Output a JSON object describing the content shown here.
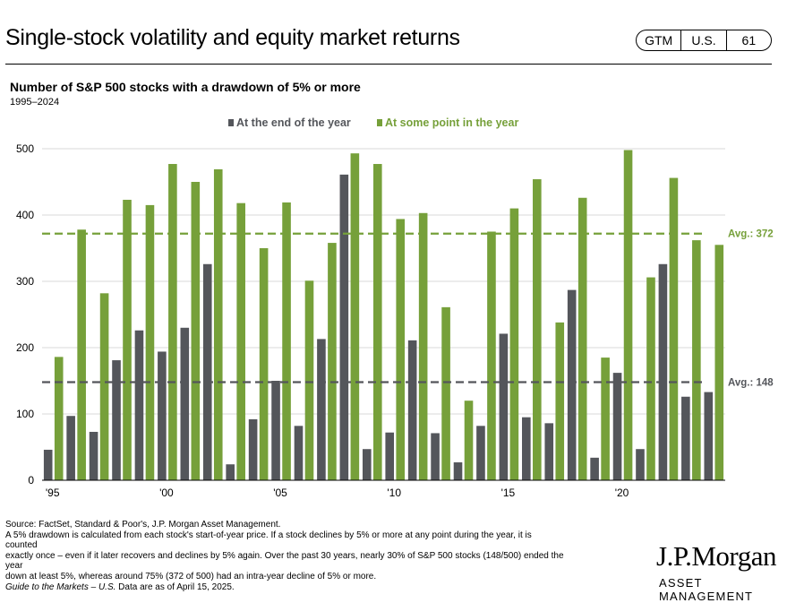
{
  "header": {
    "title": "Single-stock volatility and equity market returns",
    "badge": [
      "GTM",
      "U.S.",
      "61"
    ]
  },
  "chart_data": {
    "type": "bar",
    "title": "Number of S&P 500 stocks with a drawdown of 5% or more",
    "subtitle": "1995–2024",
    "categories": [
      1995,
      1996,
      1997,
      1998,
      1999,
      2000,
      2001,
      2002,
      2003,
      2004,
      2005,
      2006,
      2007,
      2008,
      2009,
      2010,
      2011,
      2012,
      2013,
      2014,
      2015,
      2016,
      2017,
      2018,
      2019,
      2020,
      2021,
      2022,
      2023,
      2024
    ],
    "x_tick_labels": [
      {
        "year": 1995,
        "label": "'95"
      },
      {
        "year": 2000,
        "label": "'00"
      },
      {
        "year": 2005,
        "label": "'05"
      },
      {
        "year": 2010,
        "label": "'10"
      },
      {
        "year": 2015,
        "label": "'15"
      },
      {
        "year": 2020,
        "label": "'20"
      }
    ],
    "series": [
      {
        "name": "At the end of the year",
        "color": "#54565b",
        "values": [
          46,
          97,
          73,
          181,
          226,
          194,
          230,
          326,
          24,
          92,
          150,
          82,
          213,
          461,
          47,
          72,
          211,
          71,
          27,
          82,
          221,
          95,
          86,
          287,
          34,
          162,
          47,
          326,
          126,
          133
        ]
      },
      {
        "name": "At some point in the year",
        "color": "#76a03a",
        "values": [
          186,
          378,
          282,
          423,
          415,
          477,
          450,
          469,
          418,
          350,
          419,
          301,
          358,
          493,
          477,
          394,
          403,
          261,
          120,
          375,
          410,
          454,
          238,
          426,
          185,
          498,
          306,
          456,
          362,
          355
        ]
      }
    ],
    "ylim": [
      0,
      500
    ],
    "yticks": [
      0,
      100,
      200,
      300,
      400,
      500
    ],
    "legend_position": "top-center",
    "grid": true,
    "reference_lines": [
      {
        "value": 372,
        "label": "Avg.: 372",
        "color": "#76a03a"
      },
      {
        "value": 148,
        "label": "Avg.: 148",
        "color": "#54565b"
      }
    ]
  },
  "footnote": {
    "lines": [
      "Source: FactSet, Standard & Poor's, J.P. Morgan Asset Management.",
      "A 5% drawdown is calculated from each stock's start-of-year price. If a stock declines by 5% or more at any point during the year, it is counted",
      "exactly once – even if it later recovers and declines by 5% again. Over the past 30 years, nearly 30% of S&P 500 stocks (148/500) ended the year",
      "down at least 5%, whereas around 75% (372 of 500) had an intra-year decline of 5% or more."
    ],
    "guide": "Guide to the Markets – U.S.",
    "as_of": " Data are as of April 15, 2025."
  },
  "logo": {
    "name": "J.P.Morgan",
    "sub": "ASSET MANAGEMENT"
  }
}
